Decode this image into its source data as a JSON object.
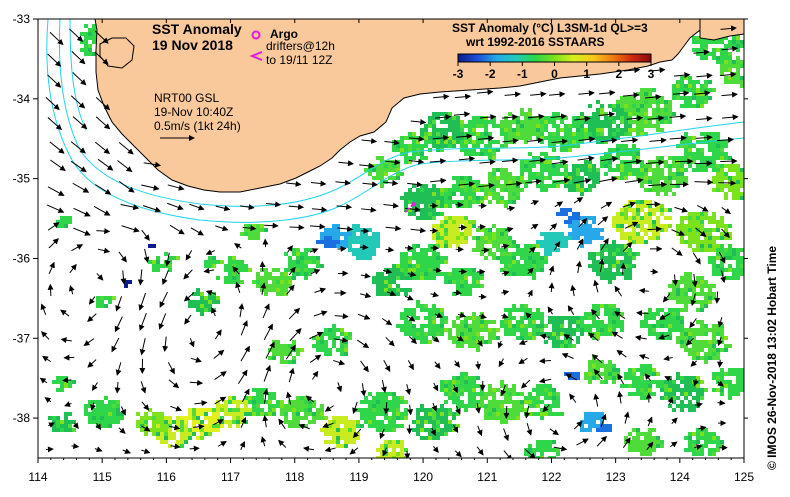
{
  "map": {
    "title_line1": "SST Anomaly",
    "title_line2": "19 Nov 2018",
    "lon_ticks": [
      114,
      115,
      116,
      117,
      118,
      119,
      120,
      121,
      122,
      123,
      124,
      125
    ],
    "lat_ticks": [
      -33,
      -34,
      -35,
      -36,
      -37,
      -38
    ],
    "land_color": "#f9c89b",
    "water_color": "#ffffff",
    "isobath_color": "#22d3ee"
  },
  "legend": {
    "argo_label": "Argo",
    "argo_color": "#e21ddc",
    "drifters_label_line1": "drifters@12h",
    "drifters_label_line2": "to 19/11 12Z",
    "drifters_color": "#e21ddc"
  },
  "currents": {
    "line1": "NRT00 GSL",
    "line2": "19-Nov 10:40Z",
    "line3": "0.5m/s (1kt 24h)"
  },
  "colorbar": {
    "title_line1": "SST Anomaly (°C) L3SM-1d QL>=3",
    "title_line2": "wrt 1992-2016 SSTAARS",
    "ticks": [
      "-3",
      "-2",
      "-1",
      "0",
      "1",
      "2",
      "3"
    ],
    "stops": [
      "#0d1b8c",
      "#1b4fd6",
      "#27a8e8",
      "#22c9b8",
      "#2fd64a",
      "#7be21c",
      "#d6f01e",
      "#f6c81a",
      "#f07d14",
      "#cf2a10",
      "#8a0b08"
    ]
  },
  "footer": {
    "side_caption": "© IMOS 26-Nov-2018 13:02 Hobart Time"
  }
}
